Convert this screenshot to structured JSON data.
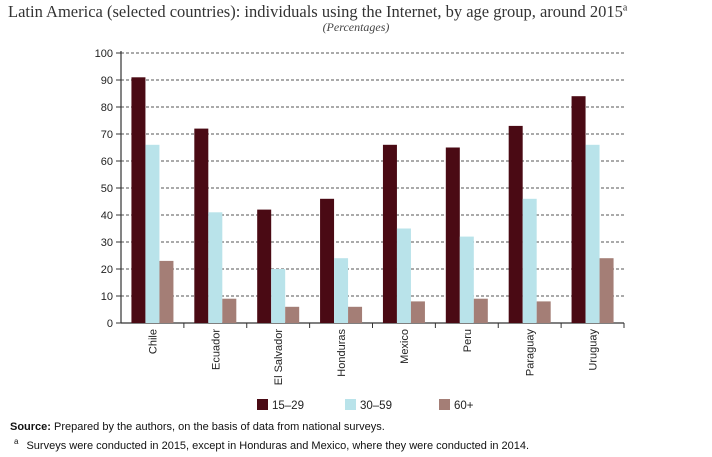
{
  "header": {
    "title": "Latin America (selected countries): individuals using the Internet, by age group, around 2015",
    "title_sup": "a",
    "subtitle": "(Percentages)"
  },
  "chart_data": {
    "type": "bar",
    "title": "Latin America (selected countries): individuals using the Internet, by age group, around 2015",
    "subtitle": "(Percentages)",
    "xlabel": "",
    "ylabel": "",
    "ylim": [
      0,
      100
    ],
    "yticks": [
      0,
      10,
      20,
      30,
      40,
      50,
      60,
      70,
      80,
      90,
      100
    ],
    "grid": true,
    "legend_position": "bottom",
    "categories": [
      "Chile",
      "Ecuador",
      "El Salvador",
      "Honduras",
      "Mexico",
      "Peru",
      "Paraguay",
      "Uruguay"
    ],
    "series": [
      {
        "name": "15–29",
        "color": "#4a0a14",
        "values": [
          91,
          72,
          42,
          46,
          66,
          65,
          73,
          84
        ]
      },
      {
        "name": "30–59",
        "color": "#b9e3ea",
        "values": [
          66,
          41,
          20,
          24,
          35,
          32,
          46,
          66
        ]
      },
      {
        "name": "60+",
        "color": "#a47e76",
        "values": [
          23,
          9,
          6,
          6,
          8,
          9,
          8,
          24
        ]
      }
    ]
  },
  "notes": {
    "source_label": "Source:",
    "source_text": " Prepared by the authors, on the basis of data from national surveys.",
    "footnote_marker": "a",
    "footnote_text": "Surveys were conducted in 2015, except in Honduras and Mexico, where they were conducted in 2014."
  }
}
